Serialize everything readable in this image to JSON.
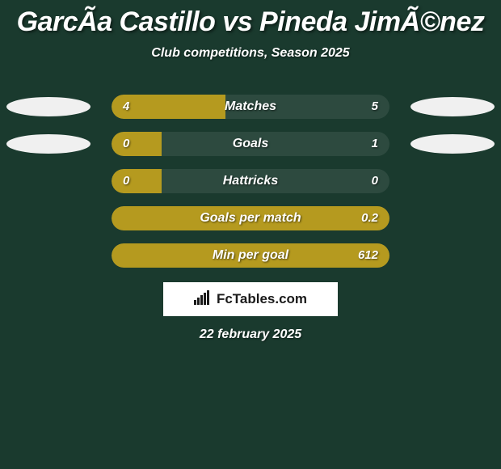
{
  "title": "GarcÃ­a Castillo vs Pineda JimÃ©nez",
  "subtitle": "Club competitions, Season 2025",
  "date": "22 february 2025",
  "branding": {
    "text": "FcTables.com"
  },
  "colors": {
    "background": "#1a3a2e",
    "track": "#2d4a3f",
    "left_fill": "#b59a1f",
    "right_fill": "#b59a1f",
    "ellipse_left": "#f0f0f0",
    "ellipse_right": "#f0f0f0",
    "text": "#ffffff"
  },
  "metrics": [
    {
      "label": "Matches",
      "left_value": "4",
      "right_value": "5",
      "left_pct": 41,
      "right_pct": 0,
      "show_ellipse": true
    },
    {
      "label": "Goals",
      "left_value": "0",
      "right_value": "1",
      "left_pct": 18,
      "right_pct": 0,
      "show_ellipse": true
    },
    {
      "label": "Hattricks",
      "left_value": "0",
      "right_value": "0",
      "left_pct": 18,
      "right_pct": 0,
      "show_ellipse": false
    },
    {
      "label": "Goals per match",
      "left_value": "",
      "right_value": "0.2",
      "left_pct": 100,
      "right_pct": 0,
      "show_ellipse": false
    },
    {
      "label": "Min per goal",
      "left_value": "",
      "right_value": "612",
      "left_pct": 100,
      "right_pct": 0,
      "show_ellipse": false
    }
  ]
}
